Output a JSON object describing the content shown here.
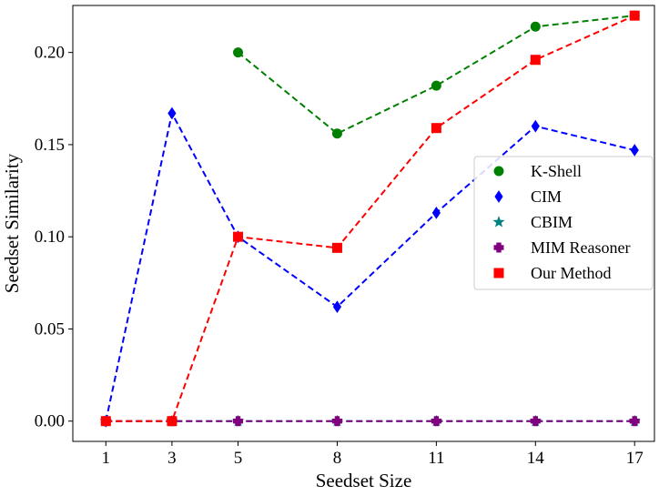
{
  "chart_data": {
    "type": "line",
    "title": "",
    "xlabel": "Seedset Size",
    "ylabel": "Seedset Similarity",
    "categories": [
      "1",
      "3",
      "5",
      "8",
      "11",
      "14",
      "17"
    ],
    "xticks": [
      "1",
      "3",
      "5",
      "8",
      "11",
      "14",
      "17"
    ],
    "yticks": [
      "0.00",
      "0.05",
      "0.10",
      "0.15",
      "0.20"
    ],
    "ylim": [
      -0.011,
      0.2255
    ],
    "grid": false,
    "legend_position": "center-right",
    "series": [
      {
        "name": "K-Shell",
        "color": "#008000",
        "marker": "circle",
        "values": [
          null,
          null,
          0.2,
          0.156,
          0.182,
          0.214,
          0.22
        ]
      },
      {
        "name": "CIM",
        "color": "#0000ff",
        "marker": "diamond",
        "values": [
          0.0,
          0.167,
          0.1,
          0.062,
          0.113,
          0.16,
          0.147
        ]
      },
      {
        "name": "CBIM",
        "color": "#008080",
        "marker": "star",
        "values": [
          0.0,
          0.0,
          0.0,
          0.0,
          0.0,
          0.0,
          0.0
        ]
      },
      {
        "name": "MIM Reasoner",
        "color": "#800080",
        "marker": "plus",
        "values": [
          0.0,
          0.0,
          0.0,
          0.0,
          0.0,
          0.0,
          0.0
        ]
      },
      {
        "name": "Our Method",
        "color": "#ff0000",
        "marker": "square",
        "values": [
          0.0,
          0.0,
          0.1,
          0.094,
          0.159,
          0.196,
          0.22
        ]
      }
    ]
  }
}
